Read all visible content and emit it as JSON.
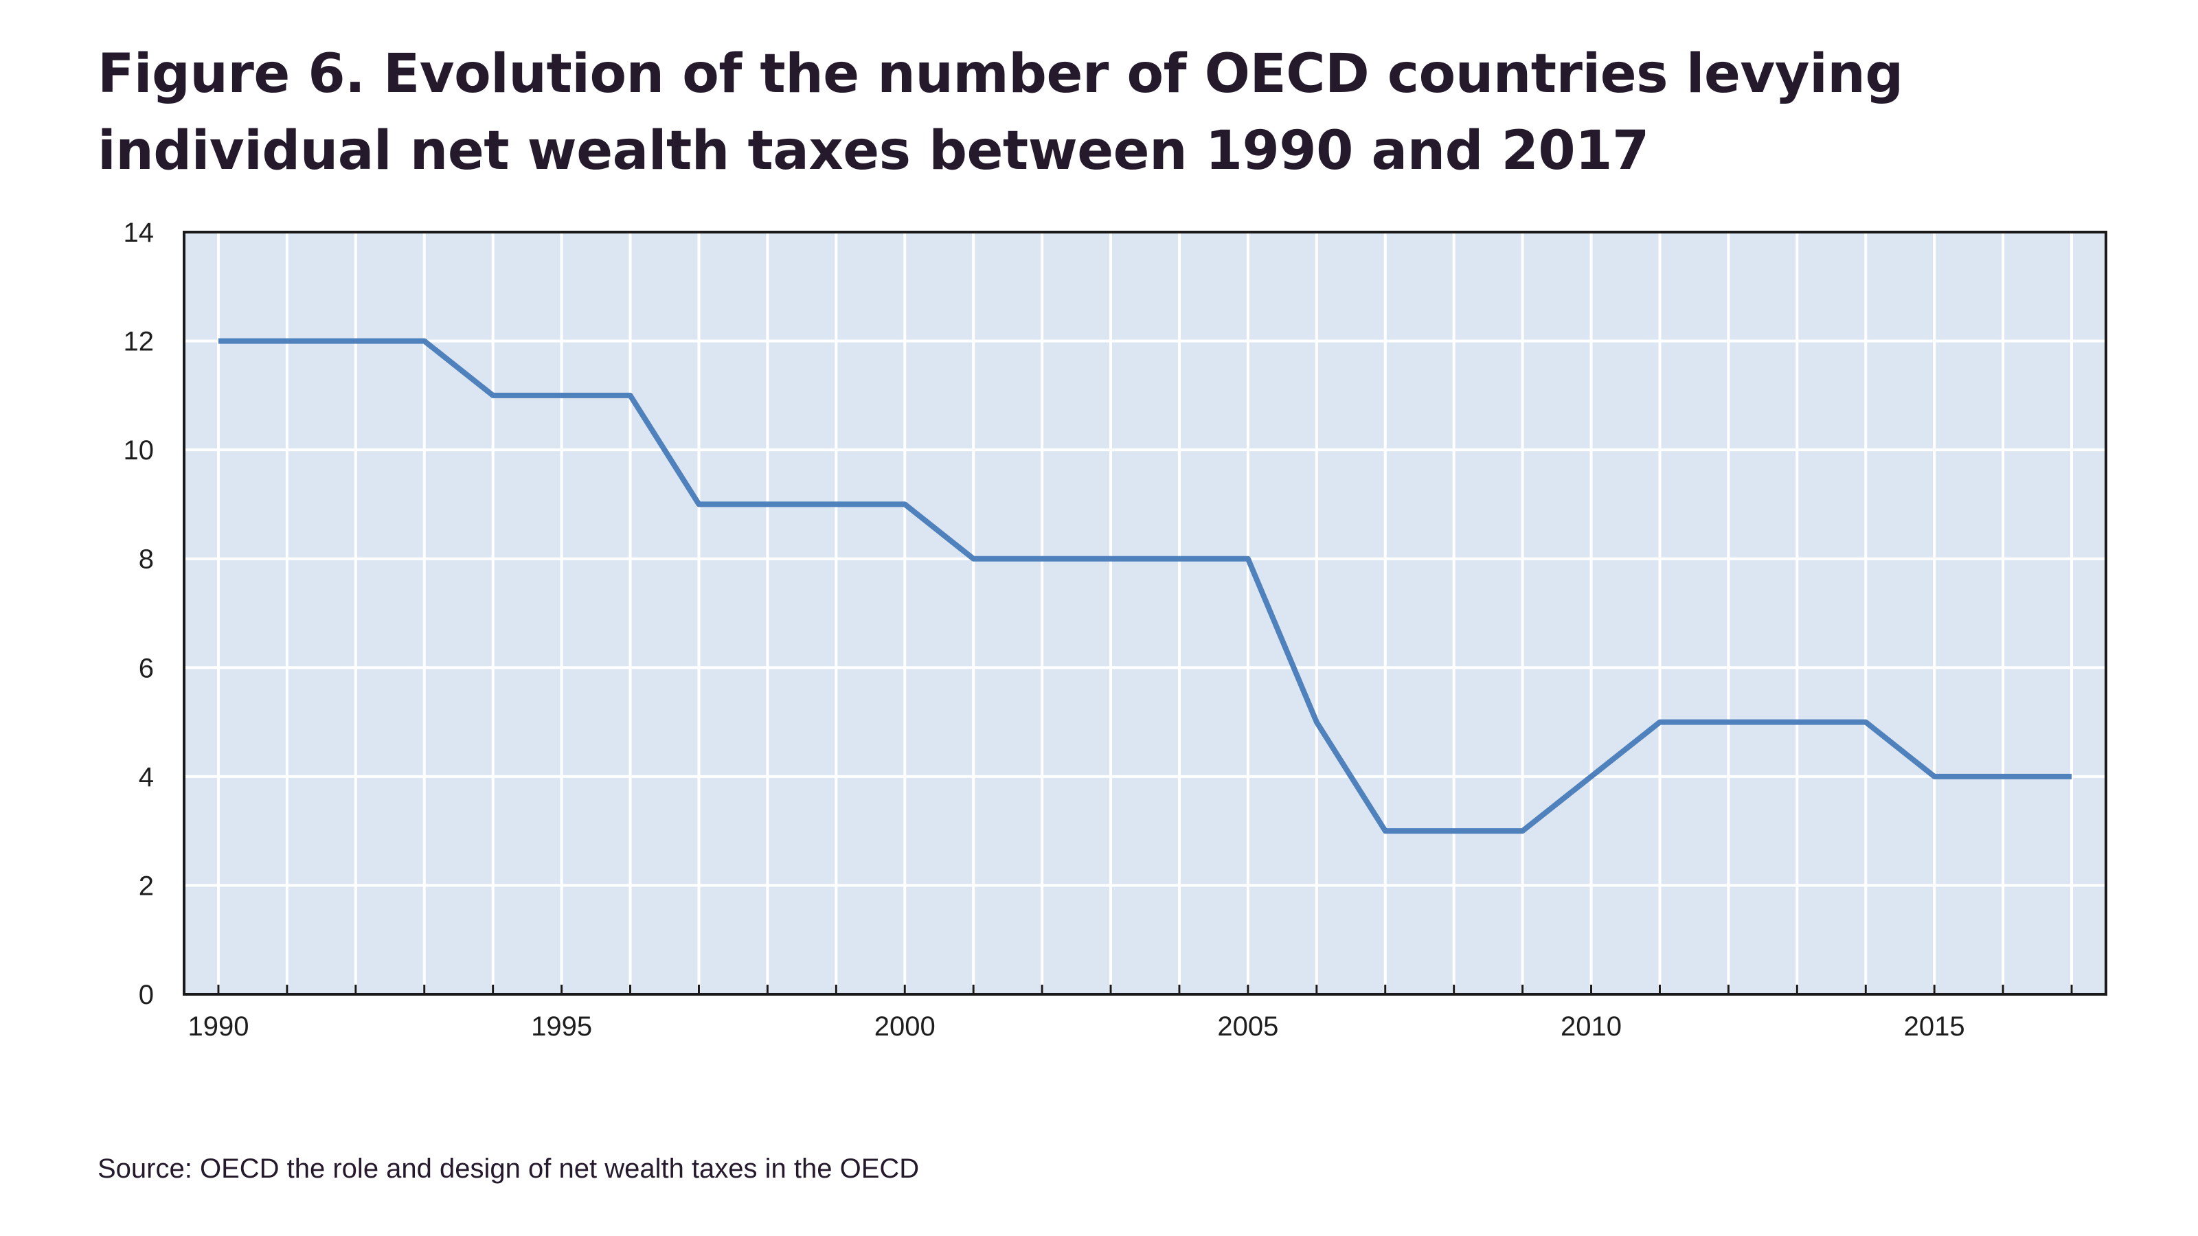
{
  "title": {
    "line1": "Figure 6. Evolution of the number of OECD countries levying",
    "line2": "individual net wealth taxes between 1990 and 2017"
  },
  "source": "Source: OECD the role and design of net wealth taxes in the OECD",
  "chart_data": {
    "type": "line",
    "title": "Figure 6. Evolution of the number of OECD countries levying individual net wealth taxes between 1990 and 2017",
    "xlabel": "",
    "ylabel": "",
    "xlim": [
      1989.5,
      2017.5
    ],
    "ylim": [
      0,
      14
    ],
    "x_ticks": [
      "1990",
      "1995",
      "2000",
      "2005",
      "2010",
      "2015"
    ],
    "y_ticks": [
      "0",
      "2",
      "4",
      "6",
      "8",
      "10",
      "12",
      "14"
    ],
    "grid": true,
    "legend": "none",
    "plot_background": "#dce6f2",
    "line_color": "#4f81bd",
    "series": [
      {
        "x": [
          1990,
          1991,
          1992,
          1993,
          1994,
          1995,
          1996,
          1997,
          1998,
          1999,
          2000,
          2001,
          2002,
          2003,
          2004,
          2005,
          2006,
          2007,
          2008,
          2009,
          2010,
          2011,
          2012,
          2013,
          2014,
          2015,
          2016,
          2017
        ],
        "values": [
          12,
          12,
          12,
          12,
          11,
          11,
          11,
          9,
          9,
          9,
          9,
          8,
          8,
          8,
          8,
          8,
          5,
          3,
          3,
          3,
          4,
          5,
          5,
          5,
          5,
          4,
          4,
          4
        ]
      }
    ]
  }
}
